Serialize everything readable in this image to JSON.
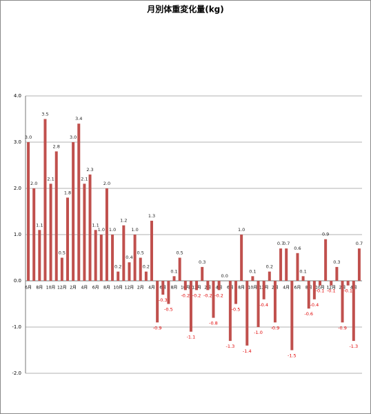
{
  "chart_data": {
    "type": "bar",
    "title": "月別体重変化量(kg)",
    "categories": [
      "6月",
      null,
      "8月",
      null,
      "10月",
      null,
      "12月",
      null,
      "2月",
      null,
      "4月",
      null,
      "6月",
      null,
      "8月",
      null,
      "10月",
      null,
      "12月",
      null,
      "2月",
      null,
      "4月",
      null,
      "6月",
      null,
      "8月",
      null,
      "10月",
      null,
      "12月",
      null,
      "2月",
      null,
      "4月",
      null,
      "6月",
      null,
      "8月",
      null,
      "10月",
      null,
      "12月",
      null,
      "2月",
      null,
      "4月",
      null,
      "6月",
      null,
      "8月",
      null,
      "10月",
      null,
      "12月",
      null,
      "2月",
      null,
      "4月",
      null
    ],
    "values": [
      3.0,
      2.0,
      1.1,
      3.5,
      2.1,
      2.8,
      0.5,
      1.8,
      3.0,
      3.4,
      2.1,
      2.3,
      1.1,
      1.0,
      2.0,
      1.0,
      0.2,
      1.2,
      0.4,
      1.0,
      0.5,
      0.2,
      1.3,
      -0.9,
      -0.3,
      -0.5,
      0.1,
      0.5,
      -0.2,
      -1.1,
      -0.2,
      0.3,
      -0.2,
      -0.8,
      -0.2,
      0.0,
      -1.3,
      -0.5,
      1.0,
      -1.4,
      0.1,
      -1.0,
      -0.4,
      0.2,
      -0.9,
      0.7,
      0.7,
      -1.5,
      0.6,
      0.1,
      -0.6,
      -0.4,
      -0.1,
      0.9,
      -0.1,
      0.3,
      -0.9,
      -0.1,
      -1.3,
      0.7
    ],
    "value_labels": [
      "3.0",
      "2.0",
      "1.1",
      "3.5",
      "2.1",
      "2.8",
      "0.5",
      "1.8",
      "3.0",
      "3.4",
      "2.1",
      "2.3",
      "1.1",
      "1.0",
      "2.0",
      "1.0",
      "0.2",
      "1.2",
      "0.4",
      "1.0",
      "0.5",
      "0.2",
      "1.3",
      "-0.9",
      "-0.3",
      "-0.5",
      "0.1",
      "0.5",
      "-0.2",
      "-1.1",
      "-0.2",
      "0.3",
      "-0.2",
      "-0.8",
      "-0.2",
      "0.0",
      "-1.3",
      "-0.5",
      "1.0",
      "-1.4",
      "0.1",
      "-1.0",
      "-0.4",
      "0.2",
      "-0.9",
      "0.7",
      "0.7",
      "-1.5",
      "0.6",
      "0.1",
      "-0.6",
      "-0.4",
      "-0.1",
      "0.9",
      "-0.1",
      "0.3",
      "-0.9",
      "-0.1",
      "-1.3",
      "0.7"
    ],
    "color": "#c0504d",
    "negative_label_color": "#e00000",
    "ylim": [
      -2,
      4
    ],
    "yticks": [
      {
        "value": -2,
        "label": "-2.0"
      },
      {
        "value": -1,
        "label": "-1.0"
      },
      {
        "value": 0,
        "label": "0.0"
      },
      {
        "value": 1,
        "label": "1.0"
      },
      {
        "value": 2,
        "label": "2.0"
      },
      {
        "value": 3,
        "label": "3.0"
      },
      {
        "value": 4,
        "label": "4.0"
      }
    ],
    "grid": true
  }
}
